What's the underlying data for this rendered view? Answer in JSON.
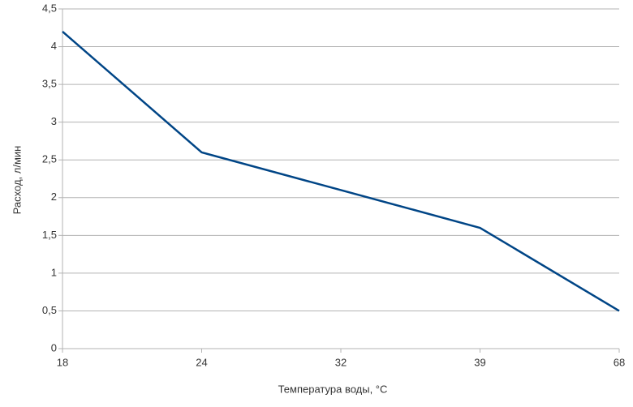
{
  "chart_data": {
    "type": "line",
    "x_label": "Температура воды, °C",
    "y_label": "Расход, л/мин",
    "categories": [
      "18",
      "24",
      "32",
      "39",
      "68"
    ],
    "values": [
      4.2,
      2.6,
      2.1,
      1.6,
      0.5
    ],
    "color": "#004586",
    "ylim": [
      0,
      4.5
    ],
    "yticks": [
      0,
      {
        "value": 0.5,
        "label": "0,5"
      },
      1,
      {
        "value": 1.5,
        "label": "1,5"
      },
      2,
      {
        "value": 2.5,
        "label": "2,5"
      },
      3,
      {
        "value": 3.5,
        "label": "3,5"
      },
      4,
      {
        "value": 4.5,
        "label": "4,5"
      }
    ],
    "grid": true
  }
}
